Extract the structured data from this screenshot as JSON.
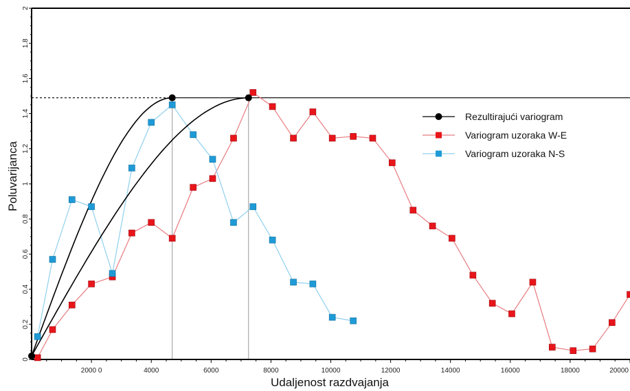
{
  "chart_data": {
    "type": "scatter",
    "title": "",
    "xlabel": "Udaljenost razdvajanja",
    "ylabel": "Poluvarijanca",
    "xlim": [
      0,
      20000
    ],
    "ylim": [
      0,
      2
    ],
    "x_ticks": [
      {
        "value": 2000,
        "label": "2000 0"
      },
      {
        "value": 4000,
        "label": "4000"
      },
      {
        "value": 6000,
        "label": "6000"
      },
      {
        "value": 8000,
        "label": "8000"
      },
      {
        "value": 10000,
        "label": "10000"
      },
      {
        "value": 12000,
        "label": "12000"
      },
      {
        "value": 14000,
        "label": "14000"
      },
      {
        "value": 16000,
        "label": "16000"
      },
      {
        "value": 18000,
        "label": "18000"
      },
      {
        "value": 20000,
        "label": "20000"
      }
    ],
    "y_ticks": [
      {
        "value": 0,
        "label": "0"
      },
      {
        "value": 0.2,
        "label": "0.2"
      },
      {
        "value": 0.4,
        "label": "0.4"
      },
      {
        "value": 0.6,
        "label": "0.6"
      },
      {
        "value": 0.8,
        "label": "0.8"
      },
      {
        "value": 1,
        "label": "1"
      },
      {
        "value": 1.2,
        "label": "1.2"
      },
      {
        "value": 1.4,
        "label": "1.4"
      },
      {
        "value": 1.6,
        "label": "1.6"
      },
      {
        "value": 1.8,
        "label": "1.8"
      },
      {
        "value": 2,
        "label": "2"
      }
    ],
    "grid": false,
    "legend_position": "right",
    "sill": 1.49,
    "range_points": [
      {
        "x": 0,
        "y": 0.02
      },
      {
        "x": 4700,
        "y": 1.49
      },
      {
        "x": 7250,
        "y": 1.49
      }
    ],
    "series": [
      {
        "name": "Rezultirajući variogram",
        "kind": "model",
        "color": "#000000",
        "ranges": [
          4700,
          7250
        ],
        "sill": 1.49
      },
      {
        "name": "Variogram uzoraka W-E",
        "kind": "sample",
        "color": "#e8151b",
        "line_color": "#e87b80",
        "x": [
          200,
          700,
          1350,
          2000,
          2700,
          3350,
          4000,
          4700,
          5400,
          6050,
          6750,
          7400,
          8050,
          8750,
          9400,
          10050,
          10750,
          11400,
          12050,
          12750,
          13400,
          14050,
          14750,
          15400,
          16050,
          16750,
          17400,
          18100,
          18750,
          19400,
          20000
        ],
        "y": [
          0.01,
          0.17,
          0.31,
          0.43,
          0.47,
          0.72,
          0.78,
          0.69,
          0.98,
          1.03,
          1.26,
          1.52,
          1.44,
          1.26,
          1.41,
          1.26,
          1.27,
          1.26,
          1.12,
          0.85,
          0.76,
          0.69,
          0.48,
          0.32,
          0.26,
          0.44,
          0.07,
          0.05,
          0.06,
          0.21,
          0.37
        ]
      },
      {
        "name": "Variogram uzoraka N-S",
        "kind": "sample",
        "color": "#1e9bd7",
        "line_color": "#8fd0ee",
        "x": [
          200,
          700,
          1350,
          2000,
          2700,
          3350,
          4000,
          4700,
          5400,
          6050,
          6750,
          7400,
          8050,
          8750,
          9400,
          10050,
          10750
        ],
        "y": [
          0.13,
          0.57,
          0.91,
          0.87,
          0.49,
          1.09,
          1.35,
          1.45,
          1.28,
          1.14,
          0.78,
          0.87,
          0.68,
          0.44,
          0.43,
          0.24,
          0.22
        ]
      }
    ]
  }
}
